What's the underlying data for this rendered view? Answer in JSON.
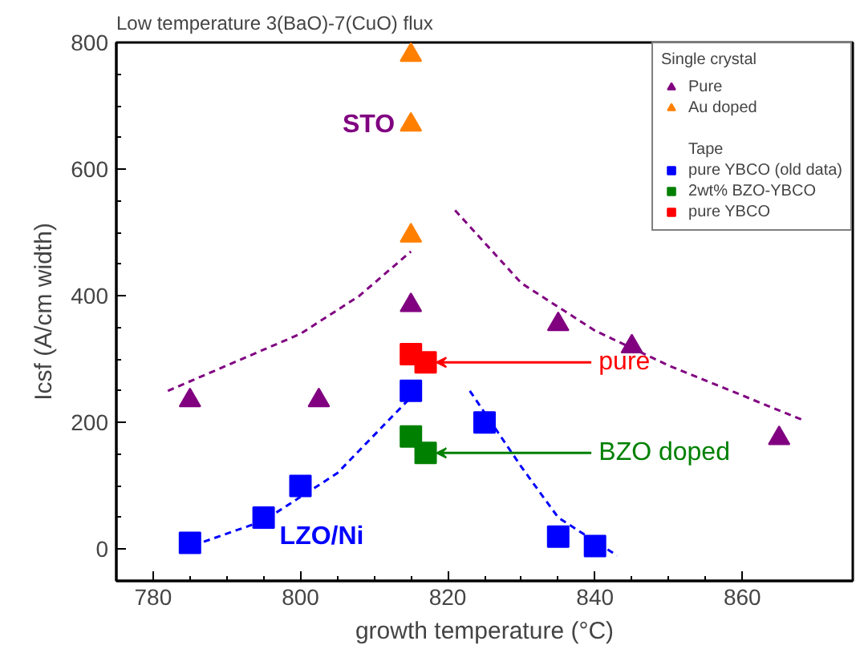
{
  "chart_data": {
    "type": "scatter",
    "title": "Low temperature 3(BaO)-7(CuO) flux",
    "xlabel": "growth temperature (°C)",
    "ylabel": "Icsf (A/cm width)",
    "xlim": [
      775,
      875
    ],
    "ylim": [
      -50,
      800
    ],
    "xticks": [
      780,
      800,
      820,
      840,
      860
    ],
    "yticks": [
      0,
      200,
      400,
      600,
      800
    ],
    "grid": false,
    "legend": "top right",
    "legend_title": [
      "Single crystal",
      "Tape"
    ],
    "series": [
      {
        "name": "Pure",
        "marker": "triangle",
        "color": "#800080",
        "x": [
          785,
          802.5,
          815,
          835,
          845,
          865
        ],
        "values": [
          235,
          235,
          385,
          355,
          320,
          175
        ]
      },
      {
        "name": "Au doped",
        "marker": "triangle",
        "color": "#ff8000",
        "x": [
          815,
          815,
          815
        ],
        "values": [
          780,
          670,
          495
        ]
      },
      {
        "name": "pure YBCO (old data)",
        "marker": "square",
        "color": "#0000ff",
        "x": [
          785,
          795,
          800,
          815,
          825,
          835,
          840
        ],
        "values": [
          10,
          50,
          100,
          250,
          200,
          20,
          5
        ]
      },
      {
        "name": "2wt% BZO-YBCO",
        "marker": "square",
        "color": "#008000",
        "x": [
          815,
          817
        ],
        "values": [
          178,
          152
        ]
      },
      {
        "name": "pure YBCO",
        "marker": "square",
        "color": "#ff0000",
        "x": [
          815,
          817
        ],
        "values": [
          308,
          295
        ]
      },
      {
        "type": "line",
        "line_style": "dashed",
        "color": "#800080",
        "x": [
          782,
          790,
          800,
          808,
          815
        ],
        "values": [
          250,
          290,
          340,
          400,
          470
        ]
      },
      {
        "type": "line",
        "line_style": "dashed",
        "color": "#800080",
        "x": [
          821,
          830,
          840,
          850,
          868
        ],
        "values": [
          535,
          420,
          345,
          290,
          205
        ]
      },
      {
        "type": "line",
        "line_style": "dashed",
        "color": "#0000ff",
        "x": [
          784,
          795,
          805,
          815
        ],
        "values": [
          0,
          45,
          120,
          240
        ]
      },
      {
        "type": "line",
        "line_style": "dashed",
        "color": "#0000ff",
        "x": [
          823,
          830,
          835,
          843
        ],
        "values": [
          250,
          130,
          50,
          -10
        ]
      }
    ],
    "annotations": [
      {
        "text": "STO",
        "x": 815,
        "y": 670
      },
      {
        "text": "LZO/Ni",
        "x": 795,
        "y": 50
      },
      {
        "text": "pure",
        "x": 818.5,
        "y": 295
      },
      {
        "text": "BZO doped",
        "x": 818.5,
        "y": 152
      }
    ]
  }
}
